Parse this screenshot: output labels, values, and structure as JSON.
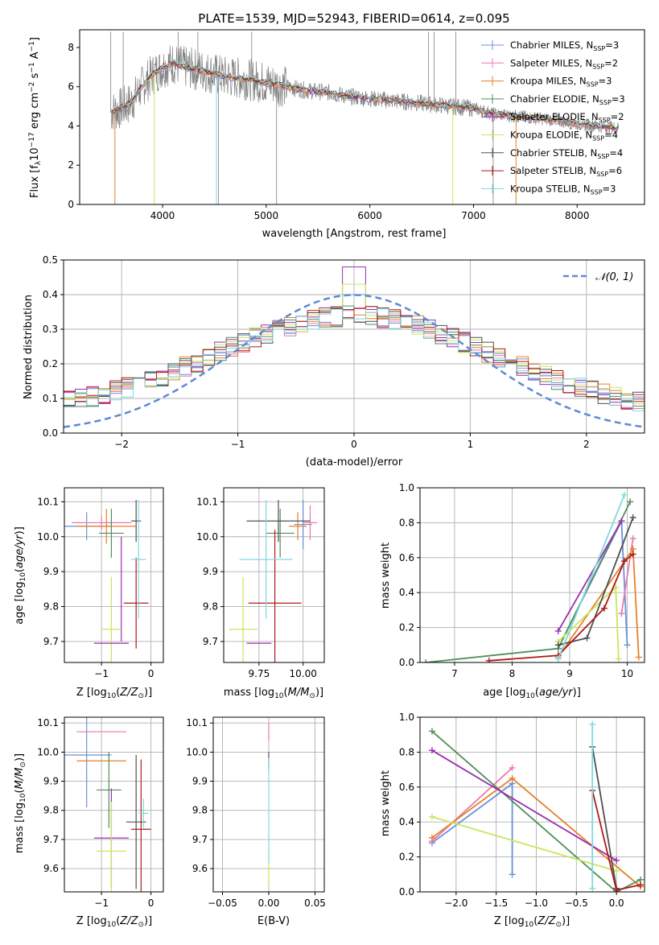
{
  "palette": {
    "Chabrier MILES": "#6a8fd8",
    "Salpeter MILES": "#e878b0",
    "Kroupa MILES": "#e6812a",
    "Chabrier ELODIE": "#4f8f5a",
    "Salpeter ELODIE": "#9a2fb0",
    "Kroupa ELODIE": "#c8e65a",
    "Chabrier STELIB": "#505050",
    "Salpeter STELIB": "#b01818",
    "Kroupa STELIB": "#7ed8e0",
    "data": "#808080",
    "normal_curve": "#5b8ad6"
  },
  "chart_data": [
    {
      "id": "spectrum",
      "type": "line",
      "title": "PLATE=1539, MJD=52943, FIBERID=0614, z=0.095",
      "xlabel": "wavelength [Angstrom, rest frame]",
      "ylabel": "Flux [f",
      "xlim": [
        3200,
        8650
      ],
      "ylim": [
        0,
        8.9
      ],
      "xticks": [
        4000,
        5000,
        6000,
        7000,
        8000
      ],
      "yticks": [
        0,
        2,
        4,
        6,
        8
      ],
      "legend_position": "top-right",
      "legend": [
        {
          "model": "Chabrier MILES",
          "nssp": "3"
        },
        {
          "model": "Salpeter MILES",
          "nssp": "2"
        },
        {
          "model": "Kroupa MILES",
          "nssp": "3"
        },
        {
          "model": "Chabrier ELODIE",
          "nssp": "3"
        },
        {
          "model": "Salpeter ELODIE",
          "nssp": "2"
        },
        {
          "model": "Kroupa ELODIE",
          "nssp": "4"
        },
        {
          "model": "Chabrier STELIB",
          "nssp": "4"
        },
        {
          "model": "Salpeter STELIB",
          "nssp": "6"
        },
        {
          "model": "Kroupa STELIB",
          "nssp": "3"
        }
      ],
      "continuum": {
        "x": [
          3500,
          3600,
          3700,
          3800,
          3900,
          4000,
          4100,
          4200,
          4400,
          4600,
          4800,
          5000,
          5200,
          5400,
          5600,
          5800,
          6000,
          6200,
          6400,
          6600,
          6800,
          7000,
          7200,
          7400,
          7600,
          7800,
          8000,
          8200,
          8400
        ],
        "y": [
          4.7,
          4.9,
          5.2,
          6.0,
          6.6,
          7.0,
          7.2,
          7.0,
          6.8,
          6.5,
          6.4,
          6.2,
          6.0,
          5.8,
          5.7,
          5.5,
          5.4,
          5.3,
          5.2,
          5.1,
          5.0,
          4.9,
          4.6,
          4.5,
          4.4,
          4.3,
          4.1,
          4.0,
          3.9
        ]
      }
    },
    {
      "id": "residuals",
      "type": "line",
      "xlabel": "(data-model)/error",
      "ylabel": "Normed distribution",
      "xlim": [
        -2.5,
        2.5
      ],
      "ylim": [
        0,
        0.5
      ],
      "xticks": [
        -2,
        -1,
        0,
        1,
        2
      ],
      "yticks": [
        0.0,
        0.1,
        0.2,
        0.3,
        0.4,
        0.5
      ],
      "legend_position": "top-right",
      "legend": "N(0,1)",
      "grid": true,
      "peak_bins": {
        "Chabrier MILES": 0.4,
        "Salpeter ELODIE": 0.48,
        "Kroupa ELODIE": 0.43,
        "Kroupa STELIB": 0.33
      }
    },
    {
      "id": "age-vs-Z",
      "type": "scatter",
      "xlabel": "Z [log",
      "ylabel": "age  [log",
      "xlim": [
        -1.75,
        0.25
      ],
      "ylim": [
        9.64,
        10.14
      ],
      "xticks": [
        -1,
        0
      ],
      "yticks": [
        9.7,
        9.8,
        9.9,
        10.0,
        10.1
      ],
      "grid": true,
      "points": [
        {
          "model": "Chabrier MILES",
          "x": -1.3,
          "y": 10.03,
          "xerr": 0.5,
          "yerr": 0.04
        },
        {
          "model": "Salpeter MILES",
          "x": -1.0,
          "y": 10.04,
          "xerr": 0.6,
          "yerr": 0.02
        },
        {
          "model": "Kroupa MILES",
          "x": -0.9,
          "y": 10.03,
          "xerr": 0.6,
          "yerr": 0.05
        },
        {
          "model": "Chabrier ELODIE",
          "x": -0.8,
          "y": 10.01,
          "xerr": 0.25,
          "yerr": 0.07
        },
        {
          "model": "Salpeter ELODIE",
          "x": -0.6,
          "y": 9.85,
          "xerr": 0.0,
          "yerr": 0.15
        },
        {
          "model": "Kroupa ELODIE",
          "x": -0.8,
          "y": 9.735,
          "xerr": 0.2,
          "yerr": 0.15
        },
        {
          "model": "Chabrier STELIB",
          "x": -0.3,
          "y": 10.045,
          "xerr": 0.1,
          "yerr": 0.06
        },
        {
          "model": "Salpeter STELIB",
          "x": -0.3,
          "y": 9.81,
          "xerr": 0.25,
          "yerr": 0.13
        },
        {
          "model": "Kroupa STELIB",
          "x": -0.25,
          "y": 9.935,
          "xerr": 0.15,
          "yerr": 0.17
        },
        {
          "model": "Salpeter ELODIE",
          "x": -0.8,
          "y": 9.695,
          "xerr": 0.35,
          "yerr": 0.0
        }
      ]
    },
    {
      "id": "age-vs-mass",
      "type": "scatter",
      "xlabel": "mass [log",
      "ylabel": "",
      "xlim": [
        9.55,
        10.12
      ],
      "ylim": [
        9.64,
        10.14
      ],
      "xticks": [
        9.75,
        10.0
      ],
      "yticks": [
        9.7,
        9.8,
        9.9,
        10.0,
        10.1
      ],
      "grid": true,
      "points": [
        {
          "model": "Chabrier MILES",
          "x": 10.0,
          "y": 10.035,
          "xerr": 0.05,
          "yerr": 0.07
        },
        {
          "model": "Salpeter MILES",
          "x": 10.04,
          "y": 10.04,
          "xerr": 0.04,
          "yerr": 0.05
        },
        {
          "model": "Kroupa MILES",
          "x": 9.97,
          "y": 10.03,
          "xerr": 0.05,
          "yerr": 0.04
        },
        {
          "model": "Chabrier ELODIE",
          "x": 9.87,
          "y": 10.01,
          "xerr": 0.08,
          "yerr": 0.07
        },
        {
          "model": "Salpeter ELODIE",
          "x": 9.75,
          "y": 9.695,
          "xerr": 0.07,
          "yerr": 0.0
        },
        {
          "model": "Kroupa ELODIE",
          "x": 9.66,
          "y": 9.735,
          "xerr": 0.08,
          "yerr": 0.15
        },
        {
          "model": "Chabrier STELIB",
          "x": 9.86,
          "y": 10.045,
          "xerr": 0.18,
          "yerr": 0.06
        },
        {
          "model": "Salpeter STELIB",
          "x": 9.84,
          "y": 9.81,
          "xerr": 0.15,
          "yerr": 0.21
        },
        {
          "model": "Kroupa STELIB",
          "x": 9.79,
          "y": 9.935,
          "xerr": 0.15,
          "yerr": 0.17
        }
      ]
    },
    {
      "id": "weight-vs-age",
      "type": "line",
      "xlabel": "age  [log",
      "ylabel": "mass weight",
      "xlim": [
        6.4,
        10.3
      ],
      "ylim": [
        0,
        1
      ],
      "xticks": [
        7,
        8,
        9,
        10
      ],
      "yticks": [
        0.0,
        0.2,
        0.4,
        0.6,
        0.8,
        1.0
      ],
      "grid": true,
      "series": [
        {
          "model": "Chabrier MILES",
          "x": [
            8.8,
            9.9,
            10.0
          ],
          "y": [
            0.08,
            0.81,
            0.1
          ]
        },
        {
          "model": "Salpeter MILES",
          "x": [
            9.9,
            10.1
          ],
          "y": [
            0.28,
            0.71
          ]
        },
        {
          "model": "Kroupa MILES",
          "x": [
            8.8,
            10.1,
            10.2
          ],
          "y": [
            0.03,
            0.65,
            0.03
          ]
        },
        {
          "model": "Chabrier ELODIE",
          "x": [
            6.5,
            8.8,
            10.05
          ],
          "y": [
            0.0,
            0.08,
            0.92
          ]
        },
        {
          "model": "Salpeter ELODIE",
          "x": [
            8.8,
            9.9
          ],
          "y": [
            0.18,
            0.81
          ]
        },
        {
          "model": "Kroupa ELODIE",
          "x": [
            8.8,
            9.8,
            9.85
          ],
          "y": [
            0.12,
            0.43,
            0.02
          ]
        },
        {
          "model": "Chabrier STELIB",
          "x": [
            8.8,
            9.3,
            10.1
          ],
          "y": [
            0.1,
            0.14,
            0.83
          ]
        },
        {
          "model": "Salpeter STELIB",
          "x": [
            7.6,
            8.8,
            9.6,
            9.95,
            10.1
          ],
          "y": [
            0.01,
            0.04,
            0.31,
            0.58,
            0.62
          ]
        },
        {
          "model": "Kroupa STELIB",
          "x": [
            8.8,
            9.95
          ],
          "y": [
            0.02,
            0.96
          ]
        }
      ]
    },
    {
      "id": "mass-vs-Z",
      "type": "scatter",
      "xlabel": "Z [log",
      "ylabel": "mass [log",
      "xlim": [
        -1.75,
        0.25
      ],
      "ylim": [
        9.52,
        10.12
      ],
      "xticks": [
        -1,
        0
      ],
      "yticks": [
        9.6,
        9.7,
        9.8,
        9.9,
        10.0,
        10.1
      ],
      "grid": true,
      "points": [
        {
          "model": "Salpeter MILES",
          "x": -1.0,
          "y": 10.07,
          "xerr": 0.5,
          "yerr": 0.0
        },
        {
          "model": "Chabrier MILES",
          "x": -1.3,
          "y": 9.99,
          "xerr": 0.5,
          "yerr": 0.18
        },
        {
          "model": "Kroupa MILES",
          "x": -1.0,
          "y": 9.97,
          "xerr": 0.5,
          "yerr": 0.0
        },
        {
          "model": "Chabrier ELODIE",
          "x": -0.85,
          "y": 9.87,
          "xerr": 0.25,
          "yerr": 0.13
        },
        {
          "model": "Salpeter ELODIE",
          "x": -0.8,
          "y": 9.705,
          "xerr": 0.35,
          "yerr": 0.17
        },
        {
          "model": "Kroupa ELODIE",
          "x": -0.8,
          "y": 9.66,
          "xerr": 0.3,
          "yerr": 0.17
        },
        {
          "model": "Chabrier STELIB",
          "x": -0.3,
          "y": 9.76,
          "xerr": 0.2,
          "yerr": 0.23
        },
        {
          "model": "Salpeter STELIB",
          "x": -0.2,
          "y": 9.735,
          "xerr": 0.2,
          "yerr": 0.24
        },
        {
          "model": "Kroupa STELIB",
          "x": -0.15,
          "y": 9.79,
          "xerr": 0.1,
          "yerr": 0.05
        }
      ]
    },
    {
      "id": "mass-vs-EBV",
      "type": "scatter",
      "xlabel": "E(B-V)",
      "ylabel": "",
      "xlim": [
        -0.06,
        0.06
      ],
      "ylim": [
        9.52,
        10.12
      ],
      "xticks": [
        -0.05,
        0.0,
        0.05
      ],
      "xticklabels": [
        "−0.05",
        "0.00",
        "0.05"
      ],
      "yticks": [
        9.6,
        9.7,
        9.8,
        9.9,
        10.0,
        10.1
      ],
      "grid": true,
      "points": [
        {
          "model": "Salpeter MILES",
          "x": 0.0,
          "y": 10.07,
          "yerr": 0.03
        },
        {
          "model": "Chabrier STELIB",
          "x": 0.0,
          "y": 9.97,
          "yerr": 0.03
        },
        {
          "model": "Kroupa ELODIE",
          "x": 0.0,
          "y": 9.6,
          "yerr": 0.05
        },
        {
          "model": "Kroupa STELIB",
          "x": 0.0,
          "y": 9.8,
          "yerr": 0.18
        }
      ]
    },
    {
      "id": "weight-vs-Z",
      "type": "line",
      "xlabel": "Z [log",
      "ylabel": "mass weight",
      "xlim": [
        -2.45,
        0.35
      ],
      "ylim": [
        0,
        1
      ],
      "xticks": [
        -2.0,
        -1.5,
        -1.0,
        -0.5,
        0.0
      ],
      "xticklabels": [
        "−2.0",
        "−1.5",
        "−1.0",
        "−0.5",
        "0.0"
      ],
      "yticks": [
        0.0,
        0.2,
        0.4,
        0.6,
        0.8,
        1.0
      ],
      "grid": true,
      "series": [
        {
          "model": "Chabrier MILES",
          "x": [
            -2.3,
            -1.3,
            -1.3
          ],
          "y": [
            0.28,
            0.62,
            0.1
          ]
        },
        {
          "model": "Salpeter MILES",
          "x": [
            -2.3,
            -1.3
          ],
          "y": [
            0.29,
            0.71
          ]
        },
        {
          "model": "Kroupa MILES",
          "x": [
            -2.3,
            -1.3,
            0.3
          ],
          "y": [
            0.31,
            0.65,
            0.03
          ]
        },
        {
          "model": "Chabrier ELODIE",
          "x": [
            -2.3,
            0.0,
            0.3
          ],
          "y": [
            0.92,
            0.0,
            0.07
          ]
        },
        {
          "model": "Salpeter ELODIE",
          "x": [
            -2.3,
            0.0
          ],
          "y": [
            0.81,
            0.18
          ]
        },
        {
          "model": "Kroupa ELODIE",
          "x": [
            -2.3,
            0.0
          ],
          "y": [
            0.43,
            0.12
          ]
        },
        {
          "model": "Chabrier STELIB",
          "x": [
            -0.3,
            0.0
          ],
          "y": [
            0.83,
            0.02
          ]
        },
        {
          "model": "Salpeter STELIB",
          "x": [
            -0.3,
            0.0,
            0.3
          ],
          "y": [
            0.58,
            0.01,
            0.04
          ]
        },
        {
          "model": "Kroupa STELIB",
          "x": [
            -0.3,
            -0.3
          ],
          "y": [
            0.96,
            0.02
          ]
        }
      ]
    }
  ]
}
